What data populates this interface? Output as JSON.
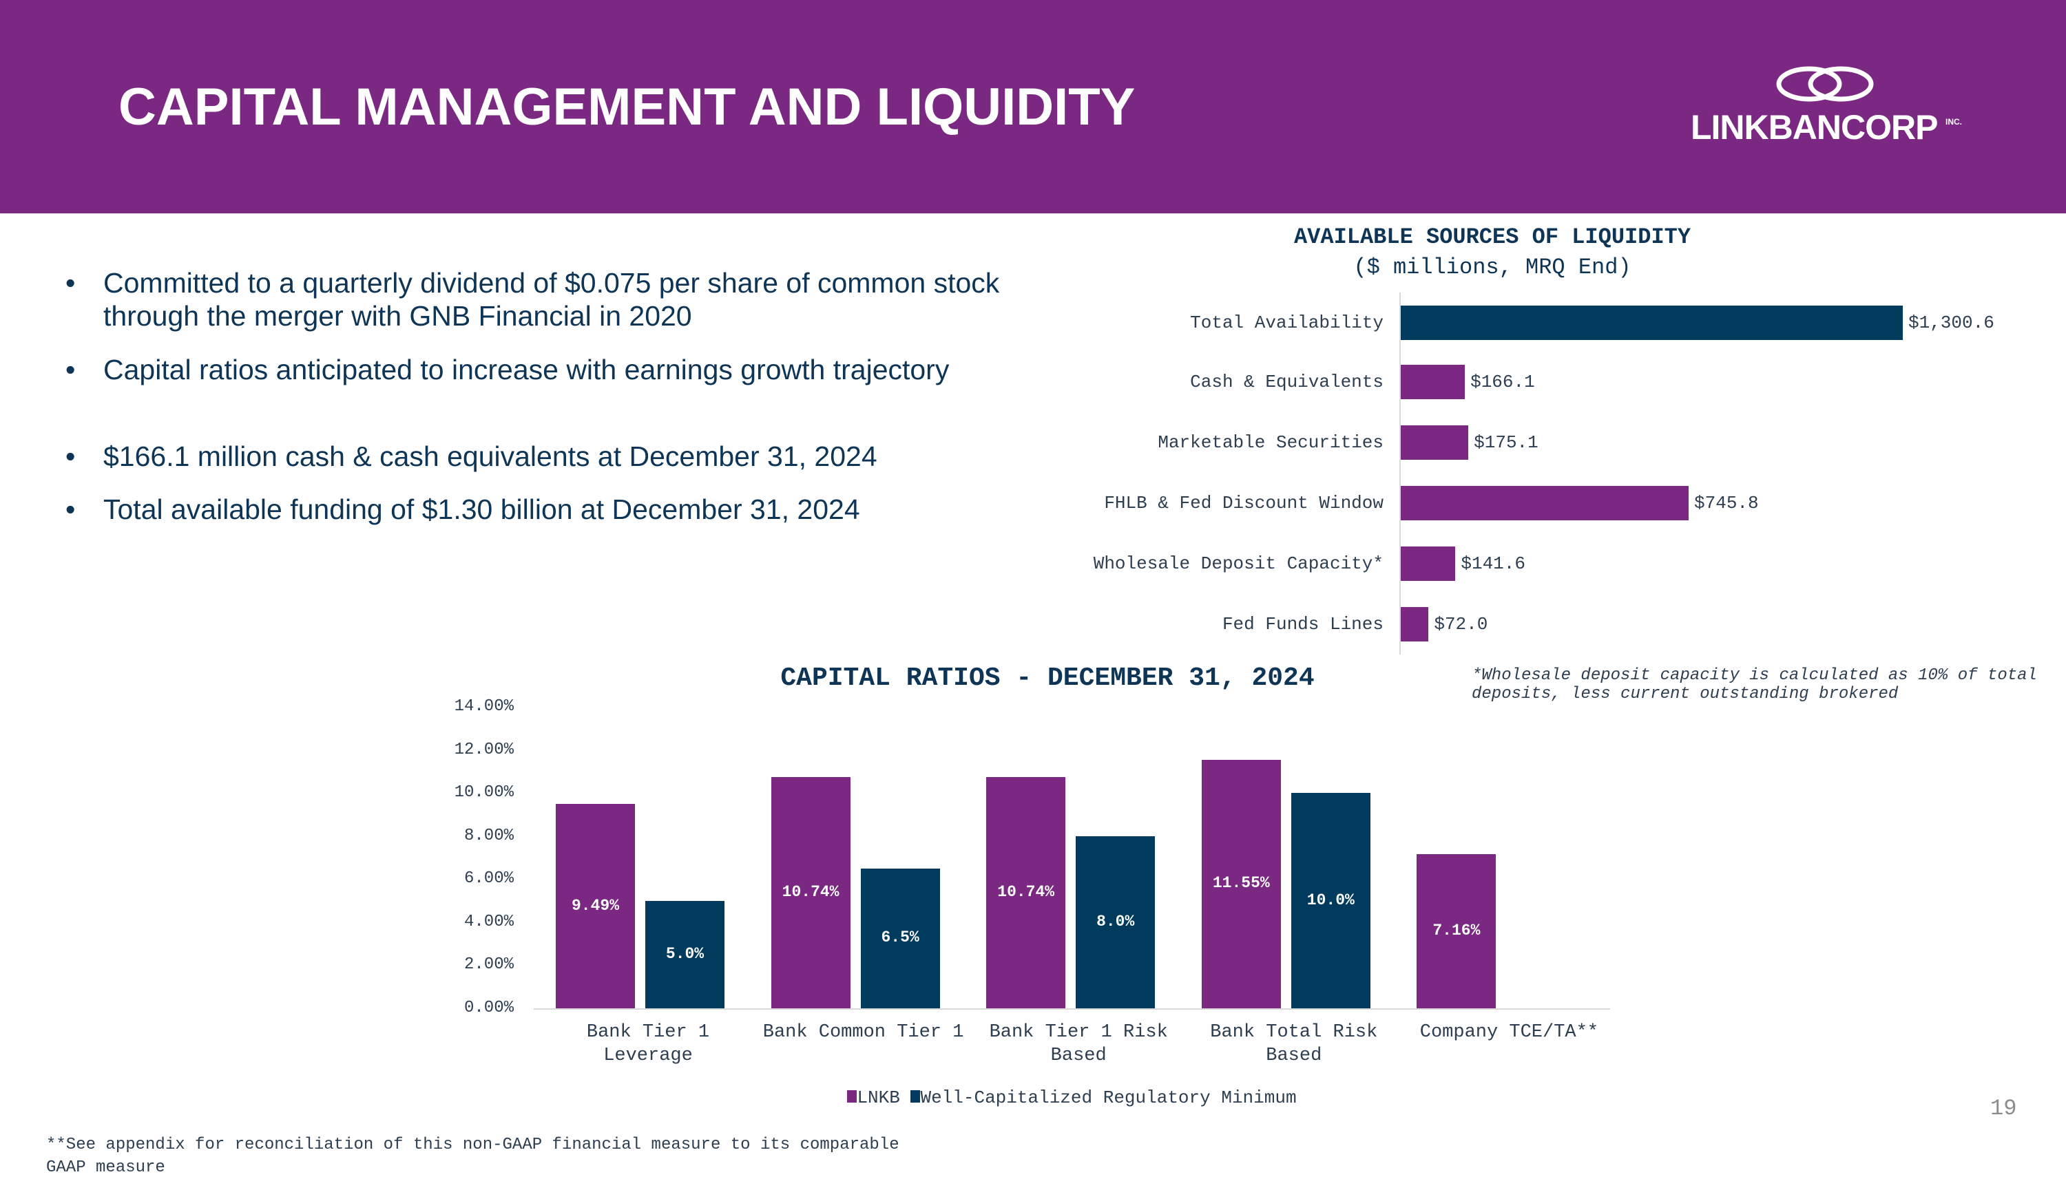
{
  "header": {
    "title": "CAPITAL MANAGEMENT AND LIQUIDITY",
    "logo_text": "LINKBANCORP",
    "logo_suffix": "INC."
  },
  "bullets": [
    "Committed to a quarterly dividend of $0.075 per share of common stock through the merger with GNB Financial in 2020",
    "Capital ratios anticipated to increase with earnings growth trajectory",
    "$166.1 million cash & cash equivalents at December 31, 2024",
    "Total available funding of $1.30 billion at December 31, 2024"
  ],
  "bullet_symbol": "•",
  "colors": {
    "purple": "#7a2882",
    "navy": "#003a5d"
  },
  "chart_data": [
    {
      "type": "bar",
      "orientation": "horizontal",
      "title": "AVAILABLE SOURCES OF LIQUIDITY",
      "subtitle": "($ millions, MRQ End)",
      "categories": [
        "Total Availability",
        "Cash & Equivalents",
        "Marketable Securities",
        "FHLB & Fed Discount Window",
        "Wholesale Deposit Capacity*",
        "Fed Funds Lines"
      ],
      "values": [
        1300.6,
        166.1,
        175.1,
        745.8,
        141.6,
        72.0
      ],
      "labels": [
        "$1,300.6",
        "$166.1",
        "$175.1",
        "$745.8",
        "$141.6",
        "$72.0"
      ],
      "colors": [
        "#003a5d",
        "#7a2882",
        "#7a2882",
        "#7a2882",
        "#7a2882",
        "#7a2882"
      ],
      "footnote": "*Wholesale deposit capacity is calculated as 10% of total deposits, less current outstanding brokered"
    },
    {
      "type": "bar",
      "title": "CAPITAL RATIOS - DECEMBER 31, 2024",
      "categories": [
        [
          "Bank Tier 1",
          "Leverage"
        ],
        [
          "Bank Common Tier 1",
          ""
        ],
        [
          "Bank Tier 1 Risk",
          "Based"
        ],
        [
          "Bank Total Risk",
          "Based"
        ],
        [
          "Company TCE/TA**",
          ""
        ]
      ],
      "yticks": [
        "0.00%",
        "2.00%",
        "4.00%",
        "6.00%",
        "8.00%",
        "10.00%",
        "12.00%",
        "14.00%"
      ],
      "ylim": [
        0,
        14
      ],
      "legend_position": "bottom",
      "series": [
        {
          "name": "LNKB",
          "color": "#7a2882",
          "values": [
            9.49,
            10.74,
            10.74,
            11.55,
            7.16
          ],
          "labels": [
            "9.49%",
            "10.74%",
            "10.74%",
            "11.55%",
            "7.16%"
          ]
        },
        {
          "name": "Well-Capitalized Regulatory Minimum",
          "color": "#003a5d",
          "values": [
            5.0,
            6.5,
            8.0,
            10.0,
            null
          ],
          "labels": [
            "5.0%",
            "6.5%",
            "8.0%",
            "10.0%",
            null
          ]
        }
      ]
    }
  ],
  "footer": {
    "note": "**See appendix for reconciliation of this non-GAAP financial measure to its comparable GAAP measure",
    "page_number": "19"
  }
}
